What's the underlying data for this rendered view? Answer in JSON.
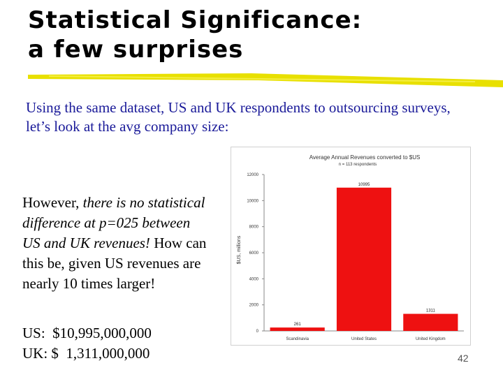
{
  "slide": {
    "title_line1": "Statistical Significance:",
    "title_line2": "a few surprises",
    "intro": "Using the same dataset, US and UK respondents to outsourcing surveys, let’s look at the avg company size:",
    "note_1": "However, ",
    "note_2": "there is no statistical difference at p=025 between US and UK revenues!",
    "note_3": "  How can this be, given US revenues are nearly 10 times larger!",
    "figure_us": "US:  $10,995,000,000",
    "figure_uk": "UK: $  1,311,000,000",
    "page_number": "42",
    "accent_color": "#e8e000"
  },
  "chart_data": {
    "type": "bar",
    "title": "Average Annual Revenues converted to $US",
    "subtitle": "n = 113 respondents",
    "ylabel": "$US, millions",
    "xlabel": "",
    "categories": [
      "Scandinavia",
      "United States",
      "United Kingdom"
    ],
    "values": [
      261,
      10995,
      1311
    ],
    "data_labels": [
      "261",
      "10995",
      "1311"
    ],
    "y_ticks": [
      0,
      2000,
      4000,
      6000,
      8000,
      10000,
      12000
    ],
    "ylim": [
      0,
      12000
    ],
    "bar_color": "#ee1111",
    "grid": false
  }
}
